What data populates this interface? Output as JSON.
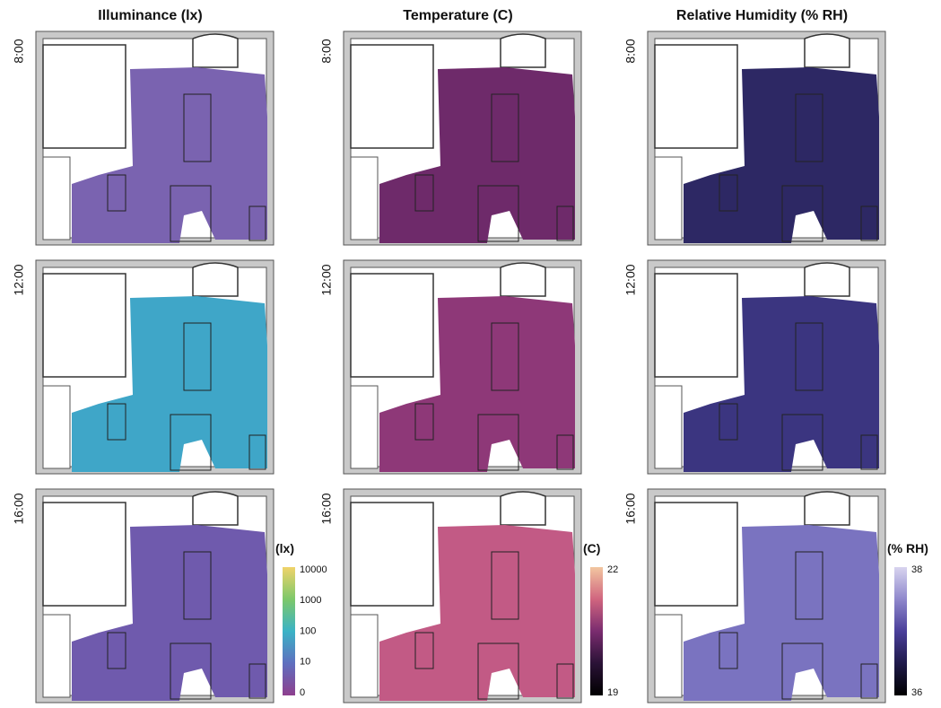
{
  "columns": [
    {
      "title": "Illuminance (lx)",
      "panel_colors": [
        "#7a63b0",
        "#3fa6c8",
        "#6f5aad"
      ],
      "colorbar": {
        "label": "(lx)",
        "ticks": [
          "10000",
          "1000",
          "100",
          "10",
          "0"
        ],
        "colors": [
          "#f0d36a",
          "#7dc86a",
          "#3bb3c6",
          "#5f6fbf",
          "#8e3f8e"
        ]
      }
    },
    {
      "title": "Temperature (C)",
      "panel_colors": [
        "#6e2a6a",
        "#8e3878",
        "#c25a85"
      ],
      "colorbar": {
        "label": "(C)",
        "ticks": [
          "22",
          "19"
        ],
        "colors": [
          "#f2c6a0",
          "#d0657f",
          "#7a2c6f",
          "#2a1236",
          "#000000"
        ]
      }
    },
    {
      "title": "Relative Humidity (% RH)",
      "panel_colors": [
        "#2d2864",
        "#3b3580",
        "#7a73c0"
      ],
      "colorbar": {
        "label": "(% RH)",
        "ticks": [
          "38",
          "36"
        ],
        "colors": [
          "#d8d4ef",
          "#8f88cc",
          "#4a3f9a",
          "#1f1a4a",
          "#000000"
        ]
      }
    }
  ],
  "rows": [
    "8:00",
    "12:00",
    "16:00"
  ]
}
